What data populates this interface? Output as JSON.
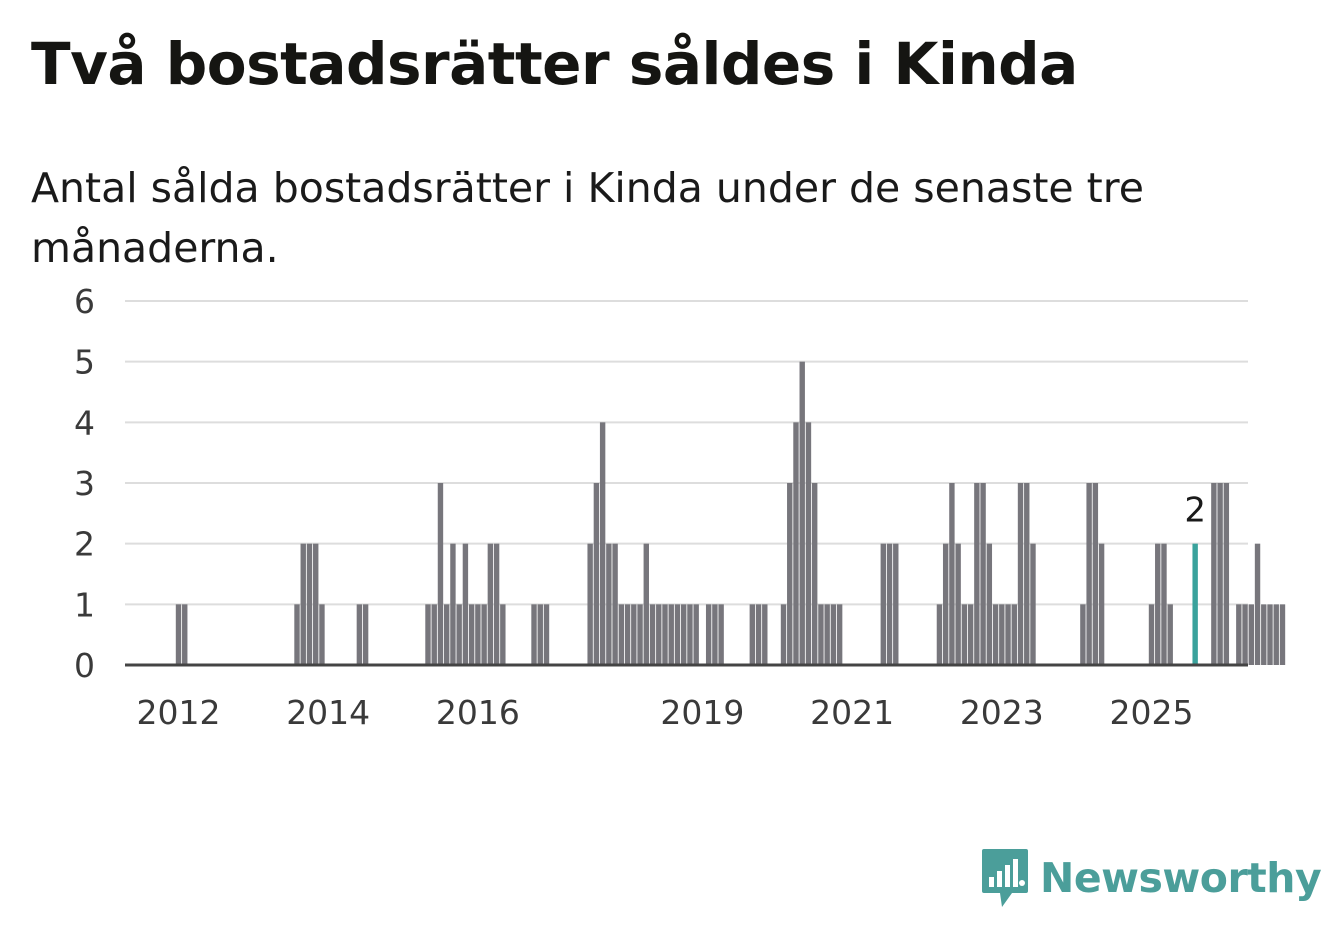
{
  "title": "Två bostadsrätter såldes i Kinda",
  "subtitle": "Antal sålda bostadsrätter i Kinda under de senaste tre månaderna.",
  "brand": "Newsworthy",
  "colors": {
    "bar": "#77767c",
    "highlight": "#3aa29c",
    "grid": "#dddddd",
    "axis": "#444444",
    "brand": "#4b9e9a"
  },
  "chart_data": {
    "type": "bar",
    "title": "Två bostadsrätter såldes i Kinda",
    "subtitle": "Antal sålda bostadsrätter i Kinda under de senaste tre månaderna.",
    "xlabel": "",
    "ylabel": "",
    "ylim": [
      0,
      6
    ],
    "yticks": [
      0,
      1,
      2,
      3,
      4,
      5,
      6
    ],
    "xticks": [
      {
        "label": "2012",
        "date": "2012-01"
      },
      {
        "label": "2014",
        "date": "2014-01"
      },
      {
        "label": "2016",
        "date": "2016-01"
      },
      {
        "label": "2019",
        "date": "2019-01"
      },
      {
        "label": "2021",
        "date": "2021-01"
      },
      {
        "label": "2023",
        "date": "2023-01"
      },
      {
        "label": "2025",
        "date": "2025-01"
      }
    ],
    "grid": true,
    "period": [
      "2011-03",
      "2025-09"
    ],
    "annotation": {
      "date": "2025-08",
      "text": "2"
    },
    "series": [
      {
        "values": [
          {
            "date": "2012-01",
            "value": 1
          },
          {
            "date": "2012-02",
            "value": 1
          },
          {
            "date": "2013-08",
            "value": 1
          },
          {
            "date": "2013-09",
            "value": 2
          },
          {
            "date": "2013-10",
            "value": 2
          },
          {
            "date": "2013-11",
            "value": 2
          },
          {
            "date": "2013-12",
            "value": 1
          },
          {
            "date": "2014-06",
            "value": 1
          },
          {
            "date": "2014-07",
            "value": 1
          },
          {
            "date": "2015-05",
            "value": 1
          },
          {
            "date": "2015-06",
            "value": 1
          },
          {
            "date": "2015-07",
            "value": 3
          },
          {
            "date": "2015-08",
            "value": 1
          },
          {
            "date": "2015-09",
            "value": 2
          },
          {
            "date": "2015-10",
            "value": 1
          },
          {
            "date": "2015-11",
            "value": 2
          },
          {
            "date": "2015-12",
            "value": 1
          },
          {
            "date": "2016-01",
            "value": 1
          },
          {
            "date": "2016-02",
            "value": 1
          },
          {
            "date": "2016-03",
            "value": 2
          },
          {
            "date": "2016-04",
            "value": 2
          },
          {
            "date": "2016-05",
            "value": 1
          },
          {
            "date": "2016-10",
            "value": 1
          },
          {
            "date": "2016-11",
            "value": 1
          },
          {
            "date": "2016-12",
            "value": 1
          },
          {
            "date": "2017-07",
            "value": 2
          },
          {
            "date": "2017-08",
            "value": 3
          },
          {
            "date": "2017-09",
            "value": 4
          },
          {
            "date": "2017-10",
            "value": 2
          },
          {
            "date": "2017-11",
            "value": 2
          },
          {
            "date": "2017-12",
            "value": 1
          },
          {
            "date": "2018-01",
            "value": 1
          },
          {
            "date": "2018-02",
            "value": 1
          },
          {
            "date": "2018-03",
            "value": 1
          },
          {
            "date": "2018-04",
            "value": 2
          },
          {
            "date": "2018-05",
            "value": 1
          },
          {
            "date": "2018-06",
            "value": 1
          },
          {
            "date": "2018-07",
            "value": 1
          },
          {
            "date": "2018-08",
            "value": 1
          },
          {
            "date": "2018-09",
            "value": 1
          },
          {
            "date": "2018-10",
            "value": 1
          },
          {
            "date": "2018-11",
            "value": 1
          },
          {
            "date": "2018-12",
            "value": 1
          },
          {
            "date": "2019-02",
            "value": 1
          },
          {
            "date": "2019-03",
            "value": 1
          },
          {
            "date": "2019-04",
            "value": 1
          },
          {
            "date": "2019-09",
            "value": 1
          },
          {
            "date": "2019-10",
            "value": 1
          },
          {
            "date": "2019-11",
            "value": 1
          },
          {
            "date": "2020-02",
            "value": 1
          },
          {
            "date": "2020-03",
            "value": 3
          },
          {
            "date": "2020-04",
            "value": 4
          },
          {
            "date": "2020-05",
            "value": 5
          },
          {
            "date": "2020-06",
            "value": 4
          },
          {
            "date": "2020-07",
            "value": 3
          },
          {
            "date": "2020-08",
            "value": 1
          },
          {
            "date": "2020-09",
            "value": 1
          },
          {
            "date": "2020-10",
            "value": 1
          },
          {
            "date": "2020-11",
            "value": 1
          },
          {
            "date": "2021-06",
            "value": 2
          },
          {
            "date": "2021-07",
            "value": 2
          },
          {
            "date": "2021-08",
            "value": 2
          },
          {
            "date": "2022-03",
            "value": 1
          },
          {
            "date": "2022-04",
            "value": 2
          },
          {
            "date": "2022-05",
            "value": 3
          },
          {
            "date": "2022-06",
            "value": 2
          },
          {
            "date": "2022-07",
            "value": 1
          },
          {
            "date": "2022-08",
            "value": 1
          },
          {
            "date": "2022-09",
            "value": 3
          },
          {
            "date": "2022-10",
            "value": 3
          },
          {
            "date": "2022-11",
            "value": 2
          },
          {
            "date": "2022-12",
            "value": 1
          },
          {
            "date": "2023-01",
            "value": 1
          },
          {
            "date": "2023-02",
            "value": 1
          },
          {
            "date": "2023-03",
            "value": 1
          },
          {
            "date": "2023-04",
            "value": 3
          },
          {
            "date": "2023-05",
            "value": 3
          },
          {
            "date": "2023-06",
            "value": 2
          },
          {
            "date": "2024-02",
            "value": 1
          },
          {
            "date": "2024-03",
            "value": 3
          },
          {
            "date": "2024-04",
            "value": 3
          },
          {
            "date": "2024-05",
            "value": 2
          },
          {
            "date": "2025-01",
            "value": 1
          },
          {
            "date": "2025-02",
            "value": 2
          },
          {
            "date": "2025-03",
            "value": 2
          },
          {
            "date": "2025-04",
            "value": 1
          },
          {
            "date": "2025-11",
            "value": 3
          },
          {
            "date": "2025-12",
            "value": 3
          },
          {
            "date": "2026-01",
            "value": 3
          },
          {
            "date": "2026-03",
            "value": 1
          },
          {
            "date": "2026-04",
            "value": 1
          },
          {
            "date": "2026-05",
            "value": 1
          },
          {
            "date": "2026-06",
            "value": 2
          },
          {
            "date": "2026-07",
            "value": 1
          },
          {
            "date": "2026-08",
            "value": 1
          },
          {
            "date": "2026-09",
            "value": 1
          },
          {
            "date": "2026-10",
            "value": 1
          },
          {
            "date": "2025-08",
            "value": 2
          }
        ]
      }
    ]
  }
}
